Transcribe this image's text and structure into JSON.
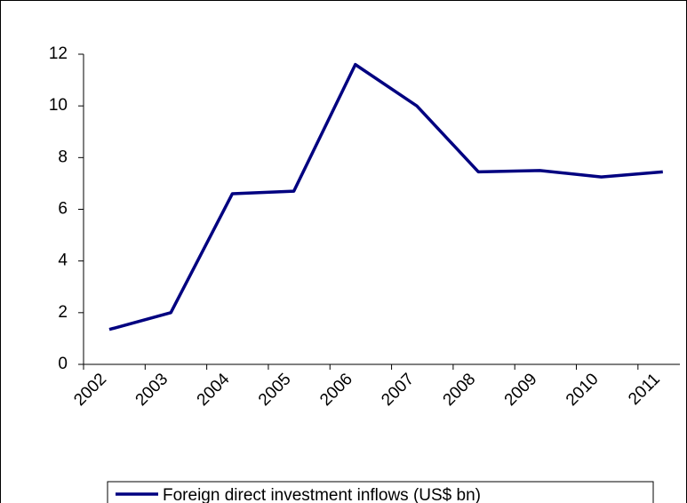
{
  "chart_data": {
    "type": "line",
    "categories": [
      "2002",
      "2003",
      "2004",
      "2005",
      "2006",
      "2007",
      "2008",
      "2009",
      "2010",
      "2011"
    ],
    "series": [
      {
        "name": "Foreign direct investment inflows (US$ bn)",
        "color": "#000080",
        "values": [
          1.35,
          2.0,
          6.6,
          6.7,
          11.6,
          10.0,
          7.45,
          7.5,
          7.25,
          7.45
        ]
      }
    ],
    "ylim": [
      0,
      12
    ],
    "yticks": [
      0,
      2,
      4,
      6,
      8,
      10,
      12
    ],
    "grid": false,
    "legend": "bottom"
  }
}
